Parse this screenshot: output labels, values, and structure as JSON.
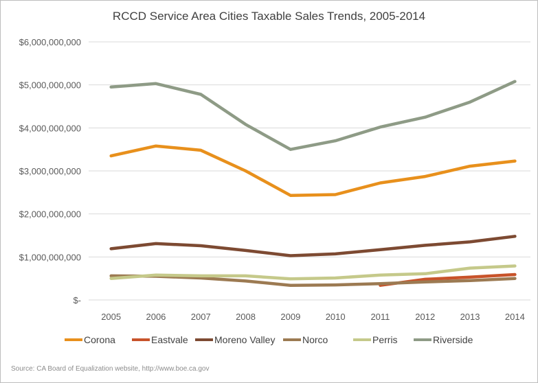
{
  "chart_data": {
    "type": "line",
    "title": "RCCD Service Area Cities Taxable Sales Trends, 2005-2014",
    "xlabel": "",
    "ylabel": "",
    "ylim": [
      0,
      6000000000
    ],
    "yticks": [
      0,
      1000000000,
      2000000000,
      3000000000,
      4000000000,
      5000000000,
      6000000000
    ],
    "ytick_labels": [
      "$-",
      "$1,000,000,000",
      "$2,000,000,000",
      "$3,000,000,000",
      "$4,000,000,000",
      "$5,000,000,000",
      "$6,000,000,000"
    ],
    "categories": [
      "2005",
      "2006",
      "2007",
      "2008",
      "2009",
      "2010",
      "2011",
      "2012",
      "2013",
      "2014"
    ],
    "grid": true,
    "legend_position": "bottom",
    "series": [
      {
        "name": "Corona",
        "color": "#e8901c",
        "values": [
          3350000000,
          3580000000,
          3480000000,
          3000000000,
          2430000000,
          2450000000,
          2720000000,
          2870000000,
          3110000000,
          3230000000
        ]
      },
      {
        "name": "Eastvale",
        "color": "#c8532a",
        "values": [
          null,
          null,
          null,
          null,
          null,
          null,
          340000000,
          480000000,
          530000000,
          590000000
        ]
      },
      {
        "name": "Moreno Valley",
        "color": "#7d4a32",
        "values": [
          1190000000,
          1310000000,
          1260000000,
          1150000000,
          1030000000,
          1070000000,
          1170000000,
          1270000000,
          1350000000,
          1480000000
        ]
      },
      {
        "name": "Norco",
        "color": "#9c7a52",
        "values": [
          560000000,
          550000000,
          510000000,
          440000000,
          340000000,
          350000000,
          380000000,
          420000000,
          450000000,
          500000000
        ]
      },
      {
        "name": "Perris",
        "color": "#c5c98a",
        "values": [
          500000000,
          580000000,
          560000000,
          560000000,
          490000000,
          510000000,
          580000000,
          610000000,
          740000000,
          790000000
        ]
      },
      {
        "name": "Riverside",
        "color": "#8e9b86",
        "values": [
          4950000000,
          5030000000,
          4780000000,
          4080000000,
          3500000000,
          3700000000,
          4020000000,
          4250000000,
          4600000000,
          5080000000
        ]
      }
    ]
  },
  "source": "Source: CA Board of Equalization website, http://www.boe.ca.gov"
}
